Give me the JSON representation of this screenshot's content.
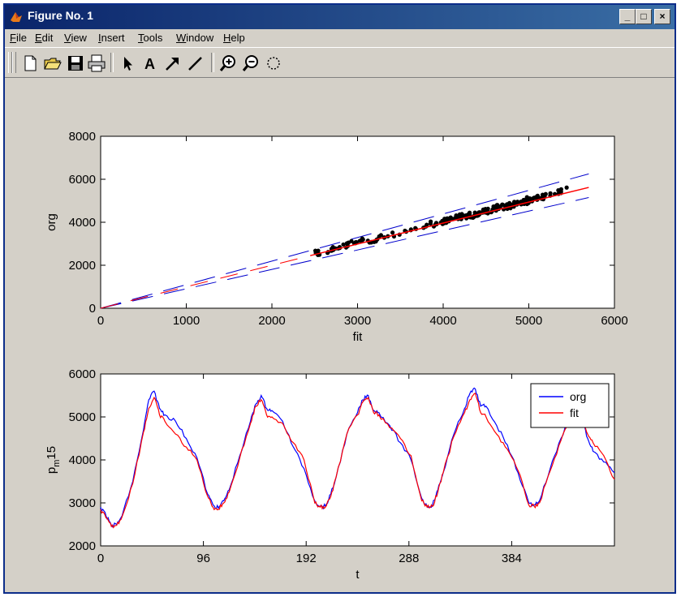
{
  "window": {
    "title": "Figure No. 1",
    "buttons": [
      "_",
      "□",
      "×"
    ]
  },
  "menubar": {
    "items": [
      {
        "label": "File",
        "key": "F",
        "rest": "ile"
      },
      {
        "label": "Edit",
        "key": "E",
        "rest": "dit"
      },
      {
        "label": "View",
        "key": "V",
        "rest": "iew"
      },
      {
        "label": "Insert",
        "key": "I",
        "rest": "nsert"
      },
      {
        "label": "Tools",
        "key": "T",
        "rest": "ools"
      },
      {
        "label": "Window",
        "key": "W",
        "rest": "indow"
      },
      {
        "label": "Help",
        "key": "H",
        "rest": "elp"
      }
    ]
  },
  "toolbar": {
    "icons": [
      "new-file-icon",
      "open-folder-icon",
      "save-icon",
      "print-icon",
      "select-arrow-icon",
      "text-icon",
      "arrow-icon",
      "line-icon",
      "zoom-in-icon",
      "zoom-out-icon",
      "rotate-icon"
    ]
  },
  "colors": {
    "org": "#0000ff",
    "fit": "#ff0000",
    "bounds": "#0000cc",
    "points": "#000000"
  },
  "chart_data": [
    {
      "type": "scatter",
      "xlabel": "fit",
      "ylabel": "org",
      "xlim": [
        0,
        6000
      ],
      "ylim": [
        0,
        8000
      ],
      "xticks": [
        "0",
        "1000",
        "2000",
        "3000",
        "4000",
        "5000",
        "6000"
      ],
      "yticks": [
        "0",
        "2000",
        "4000",
        "6000",
        "8000"
      ],
      "fit_line": {
        "x": [
          2450,
          5700
        ],
        "y": [
          2450,
          5620
        ]
      },
      "upper_bound": {
        "x": [
          0,
          5700
        ],
        "y": [
          0,
          6250
        ]
      },
      "lower_bound": {
        "x": [
          0,
          5700
        ],
        "y": [
          0,
          5150
        ]
      },
      "points_cluster": [
        {
          "x": 2500,
          "y": 2550
        },
        {
          "x": 2600,
          "y": 2620
        },
        {
          "x": 2800,
          "y": 2880
        },
        {
          "x": 3000,
          "y": 3050
        },
        {
          "x": 3200,
          "y": 3200
        },
        {
          "x": 3500,
          "y": 3480
        },
        {
          "x": 3800,
          "y": 3800
        },
        {
          "x": 4000,
          "y": 4050
        },
        {
          "x": 4200,
          "y": 4250
        },
        {
          "x": 4400,
          "y": 4400
        },
        {
          "x": 4600,
          "y": 4650
        },
        {
          "x": 4800,
          "y": 4800
        },
        {
          "x": 5000,
          "y": 5050
        },
        {
          "x": 5200,
          "y": 5200
        },
        {
          "x": 5500,
          "y": 5550
        }
      ],
      "grid": false
    },
    {
      "type": "line",
      "xlabel": "t",
      "ylabel": "p_m15",
      "ylabel_main": "p",
      "ylabel_sub": "m",
      "ylabel_tail": "15",
      "xlim": [
        0,
        480
      ],
      "ylim": [
        2000,
        6000
      ],
      "xticks": [
        "0",
        "96",
        "192",
        "288",
        "384"
      ],
      "yticks": [
        "2000",
        "3000",
        "4000",
        "5000",
        "6000"
      ],
      "legend": [
        "org",
        "fit"
      ],
      "legend_position": "top-right",
      "series": [
        {
          "name": "org",
          "t": [
            0,
            5,
            10,
            15,
            20,
            30,
            40,
            45,
            50,
            55,
            60,
            70,
            80,
            90,
            100,
            105,
            110,
            115,
            120,
            130,
            140,
            145,
            150,
            155,
            160,
            170,
            180,
            190,
            200,
            205,
            210,
            215,
            220,
            230,
            240,
            245,
            250,
            255,
            260,
            270,
            280,
            290,
            300,
            305,
            310,
            315,
            320,
            330,
            340,
            345,
            350,
            355,
            360,
            370,
            380,
            390,
            400,
            405,
            410,
            420,
            430,
            440,
            445,
            450,
            455,
            460,
            470,
            480
          ],
          "y": [
            2900,
            2700,
            2480,
            2500,
            2700,
            3500,
            4700,
            5400,
            5600,
            5200,
            5050,
            4900,
            4500,
            4050,
            3200,
            2950,
            2880,
            3050,
            3300,
            4100,
            4900,
            5300,
            5500,
            5200,
            5150,
            4900,
            4300,
            3800,
            3050,
            2920,
            2920,
            3200,
            3600,
            4600,
            5100,
            5400,
            5500,
            5150,
            5100,
            4800,
            4400,
            4000,
            3100,
            2920,
            2950,
            3300,
            3700,
            4600,
            5200,
            5550,
            5650,
            5250,
            5250,
            4800,
            4350,
            3700,
            3000,
            2950,
            3050,
            3800,
            4500,
            5100,
            5300,
            4900,
            4500,
            4200,
            3950,
            3700
          ]
        },
        {
          "name": "fit",
          "t": [
            0,
            5,
            10,
            15,
            20,
            30,
            40,
            45,
            50,
            55,
            60,
            70,
            80,
            90,
            100,
            105,
            110,
            115,
            120,
            130,
            140,
            145,
            150,
            155,
            160,
            170,
            180,
            190,
            200,
            205,
            210,
            215,
            220,
            230,
            240,
            245,
            250,
            255,
            260,
            270,
            280,
            290,
            300,
            305,
            310,
            315,
            320,
            330,
            340,
            345,
            350,
            355,
            360,
            370,
            380,
            390,
            400,
            405,
            410,
            420,
            430,
            440,
            445,
            450,
            455,
            460,
            470,
            480
          ],
          "y": [
            2850,
            2650,
            2450,
            2480,
            2680,
            3450,
            4650,
            5200,
            5450,
            5050,
            4900,
            4600,
            4300,
            4000,
            3150,
            2900,
            2850,
            3000,
            3250,
            4050,
            4850,
            5250,
            5400,
            5050,
            5000,
            4850,
            4400,
            4000,
            3000,
            2900,
            2900,
            3150,
            3600,
            4600,
            5050,
            5350,
            5450,
            5100,
            5050,
            4750,
            4500,
            4100,
            3050,
            2900,
            2920,
            3250,
            3700,
            4550,
            5100,
            5400,
            5550,
            5100,
            5000,
            4600,
            4250,
            3750,
            2950,
            2920,
            3000,
            3750,
            4450,
            5000,
            5200,
            4850,
            4600,
            4400,
            4100,
            3550
          ]
        }
      ],
      "grid": false
    }
  ]
}
